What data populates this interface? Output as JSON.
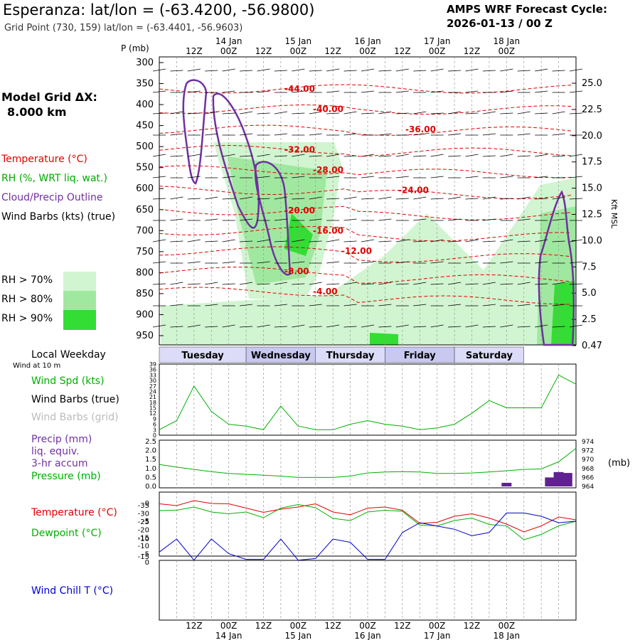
{
  "header": {
    "title": "Esperanza:  lat/lon = (-63.4200, -56.9800)",
    "subtitle": "Grid Point (730, 159) lat/lon = (-63.4401, -56.9603)",
    "cycle_line1": "AMPS WRF Forecast Cycle:",
    "cycle_line2": "2026-01-13 / 00  Z",
    "p_label": "P (mb)"
  },
  "left_legend": {
    "grid_label": "Model Grid ΔX:",
    "grid_value": "8.000 km",
    "temperature": "Temperature (°C)",
    "rh": "RH (%, WRT liq. wat.)",
    "cloud": "Cloud/Precip Outline",
    "wind_barbs": "Wind Barbs (kts) (true)",
    "rh70": "RH > 70%",
    "rh80": "RH > 80%",
    "rh90": "RH > 90%",
    "local_weekday": "Local Weekday",
    "wind_at_10m": "Wind at 10 m",
    "wind_spd": "Wind Spd (kts)",
    "wind_barbs_true": "Wind Barbs (true)",
    "wind_barbs_grid": "Wind Barbs (grid)",
    "precip1": "Precip (mm)",
    "precip2": "liq. equiv.",
    "precip3": "3-hr accum",
    "pressure": "Pressure (mb)",
    "temp_panel": "Temperature (°C)",
    "dewpoint_panel": "Dewpoint (°C)",
    "windchill": "Wind Chill T (°C)"
  },
  "colors": {
    "temperature": "#e00000",
    "rh_label": "#00aa00",
    "cloud": "#7030a0",
    "rh70": "#d0f5d0",
    "rh80": "#a0e8a0",
    "rh90": "#33dd33",
    "wind": "#00b000",
    "precip": "#602090",
    "windchill": "#0000cc",
    "grey": "#aaaaaa"
  },
  "time_axis": {
    "hour_labels": [
      "12Z",
      "00Z",
      "12Z",
      "00Z",
      "12Z",
      "00Z",
      "12Z",
      "00Z",
      "12Z",
      "00Z"
    ],
    "date_labels": [
      "14 Jan",
      "15 Jan",
      "16 Jan",
      "17 Jan",
      "18 Jan"
    ],
    "weekdays": [
      "Tuesday",
      "Wednesday",
      "Thursday",
      "Friday",
      "Saturday"
    ]
  },
  "chart_data": [
    {
      "type": "contour",
      "title": "Time-height cross section",
      "ylabel": "P (mb)",
      "y_ticks_mb": [
        300,
        350,
        400,
        450,
        500,
        550,
        600,
        650,
        700,
        750,
        800,
        850,
        900,
        950
      ],
      "right_axis_label": "Kft MSL",
      "right_axis_ticks": [
        "25.0",
        "22.5",
        "20.0",
        "17.5",
        "15.0",
        "12.5",
        "10.0",
        "7.5",
        "5.0",
        "2.5",
        "0.47"
      ],
      "temperature_contour_labels": [
        "-44.00",
        "-40.00",
        "-36.00",
        "-32.00",
        "-28.00",
        "-24.00",
        "-20.00",
        "-16.00",
        "-12.00",
        "-8.00",
        "-4.00"
      ]
    },
    {
      "type": "line",
      "title": "Wind Spd (kts)",
      "ylim": [
        0,
        39
      ],
      "y_ticks": [
        "39",
        "36",
        "33",
        "30",
        "27",
        "24",
        "21",
        "18",
        "15",
        "12",
        "9",
        "6",
        "3",
        "0"
      ],
      "x_hours": [
        0,
        6,
        12,
        18,
        24,
        30,
        36,
        42,
        48,
        54,
        60,
        66,
        72,
        78,
        84,
        90,
        96,
        102,
        108,
        114,
        120,
        126,
        132,
        138,
        144
      ],
      "values": [
        3,
        8,
        27,
        13,
        6,
        5,
        3,
        16,
        5,
        3,
        3,
        6,
        8,
        6,
        5,
        3,
        4,
        6,
        12,
        19,
        15,
        15,
        15,
        33,
        28
      ]
    },
    {
      "type": "line+bar",
      "title": "Precip / Pressure",
      "precip_ylim": [
        0,
        2.5
      ],
      "precip_ticks": [
        "2.5",
        "2.0",
        "1.5",
        "1.0",
        "0.5",
        "0.0"
      ],
      "pressure_ylim": [
        964,
        974
      ],
      "pressure_ticks": [
        "974",
        "972",
        "970",
        "968",
        "966",
        "964"
      ],
      "pressure_unit": "(mb)",
      "pressure_hours": [
        0,
        6,
        12,
        18,
        24,
        30,
        36,
        42,
        48,
        54,
        60,
        66,
        72,
        78,
        84,
        90,
        96,
        102,
        108,
        114,
        120,
        126,
        132,
        138,
        144
      ],
      "pressure_values": [
        968.9,
        968.3,
        967.8,
        967.3,
        966.9,
        966.7,
        966.5,
        966.3,
        966.0,
        966.0,
        966.0,
        966.3,
        967.0,
        967.2,
        967.3,
        967.2,
        966.9,
        966.9,
        967.0,
        967.2,
        967.5,
        967.8,
        967.9,
        969.5,
        972.5
      ],
      "precip_bars": [
        {
          "hour": 120,
          "value": 0.2
        },
        {
          "hour": 135,
          "value": 0.5
        },
        {
          "hour": 138,
          "value": 0.8
        },
        {
          "hour": 141,
          "value": 0.75
        }
      ]
    },
    {
      "type": "line",
      "title": "Temperature / Dewpoint",
      "ylim": [
        -15,
        3
      ],
      "y_ticks": [
        "0",
        "-5",
        "-10",
        "-15"
      ],
      "series": [
        {
          "name": "Temperature",
          "hours": [
            0,
            6,
            12,
            18,
            24,
            30,
            36,
            42,
            48,
            54,
            60,
            66,
            72,
            78,
            84,
            90,
            96,
            102,
            108,
            114,
            120,
            126,
            132,
            138,
            144
          ],
          "values": [
            -0.3,
            -0.8,
            0.6,
            -0.2,
            -0.3,
            -1.5,
            -2.7,
            -1.8,
            -1.2,
            -0.3,
            -2.6,
            -3.4,
            -1.5,
            -1.2,
            -2.1,
            -5.8,
            -5.5,
            -3.8,
            -3.1,
            -4.3,
            -6.0,
            -8.2,
            -6.5,
            -4.0,
            -4.8
          ]
        },
        {
          "name": "Dewpoint",
          "hours": [
            0,
            6,
            12,
            18,
            24,
            30,
            36,
            42,
            48,
            54,
            60,
            66,
            72,
            78,
            84,
            90,
            96,
            102,
            108,
            114,
            120,
            126,
            132,
            138,
            144
          ],
          "values": [
            -2.2,
            -2.1,
            -1.2,
            -2.6,
            -3.1,
            -2.6,
            -4.2,
            -1.5,
            -0.5,
            -1.4,
            -4.4,
            -5.0,
            -2.6,
            -2.1,
            -2.4,
            -6.3,
            -6.5,
            -5.0,
            -4.3,
            -6.1,
            -6.5,
            -10.4,
            -8.9,
            -6.5,
            -5.2
          ]
        }
      ]
    },
    {
      "type": "line",
      "title": "Wind Chill T (°C)",
      "ylim": [
        -35,
        0
      ],
      "y_ticks": [
        "0",
        "-5",
        "-10",
        "-15",
        "-20",
        "-25",
        "-30",
        "-35"
      ],
      "hours": [
        0,
        6,
        12,
        18,
        24,
        30,
        36,
        42,
        48,
        54,
        60,
        66,
        72,
        78,
        84,
        90,
        96,
        102,
        108,
        114,
        120,
        126,
        132,
        138,
        144
      ],
      "values": [
        -6,
        -14,
        -1,
        -14,
        -5,
        -1.5,
        -1.5,
        -14,
        -1,
        -2,
        -14,
        -12,
        -1.5,
        -1.5,
        -18,
        -24,
        -22,
        -20,
        -16,
        -18,
        -30,
        -30,
        -28,
        -24,
        -25
      ]
    }
  ]
}
